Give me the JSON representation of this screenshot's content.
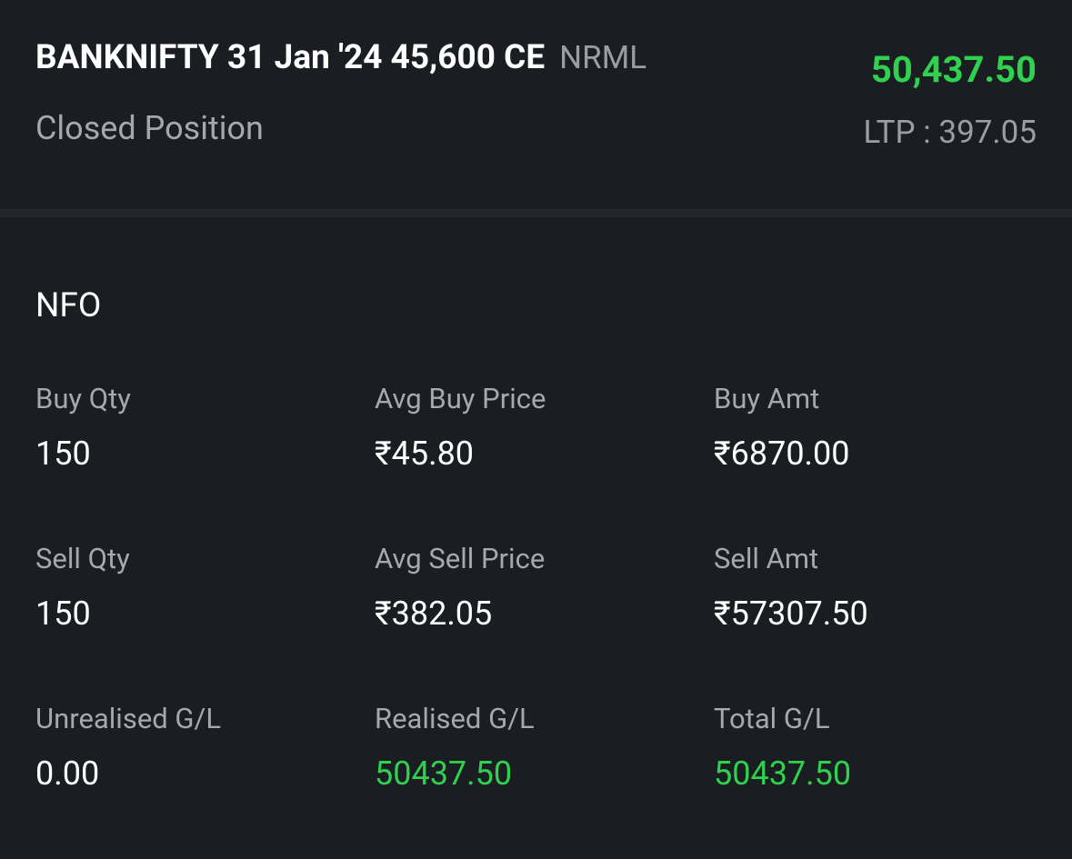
{
  "header": {
    "title": "BANKNIFTY 31 Jan '24 45,600 CE",
    "product": "NRML",
    "pnl": "50,437.50",
    "status": "Closed Position",
    "ltp": "LTP : 397.05"
  },
  "section": {
    "title": "NFO",
    "rows": [
      [
        {
          "label": "Buy Qty",
          "value": "150"
        },
        {
          "label": "Avg Buy Price",
          "value": "₹45.80"
        },
        {
          "label": "Buy Amt",
          "value": "₹6870.00"
        }
      ],
      [
        {
          "label": "Sell Qty",
          "value": "150"
        },
        {
          "label": "Avg Sell Price",
          "value": "₹382.05"
        },
        {
          "label": "Sell Amt",
          "value": "₹57307.50"
        }
      ],
      [
        {
          "label": "Unrealised G/L",
          "value": "0.00"
        },
        {
          "label": "Realised G/L",
          "value": "50437.50"
        },
        {
          "label": "Total G/L",
          "value": "50437.50"
        }
      ]
    ]
  }
}
